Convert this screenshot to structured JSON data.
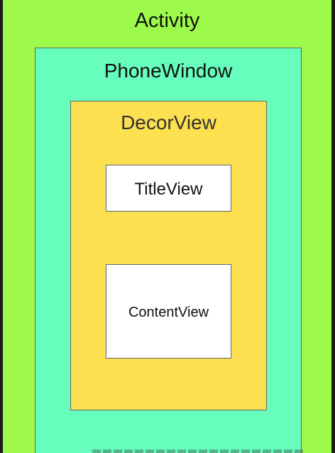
{
  "diagram": {
    "activity": {
      "label": "Activity",
      "color": "#9dfa4b"
    },
    "phone_window": {
      "label": "PhoneWindow",
      "color": "#66fdbd"
    },
    "decor_view": {
      "label": "DecorView",
      "color": "#fde04f"
    },
    "title_view": {
      "label": "TitleView",
      "color": "#ffffff"
    },
    "content_view": {
      "label": "ContentView",
      "color": "#ffffff"
    }
  },
  "text_color": "#111111",
  "decor_text_color": "#333333",
  "frame_color": "#1c1c1c"
}
